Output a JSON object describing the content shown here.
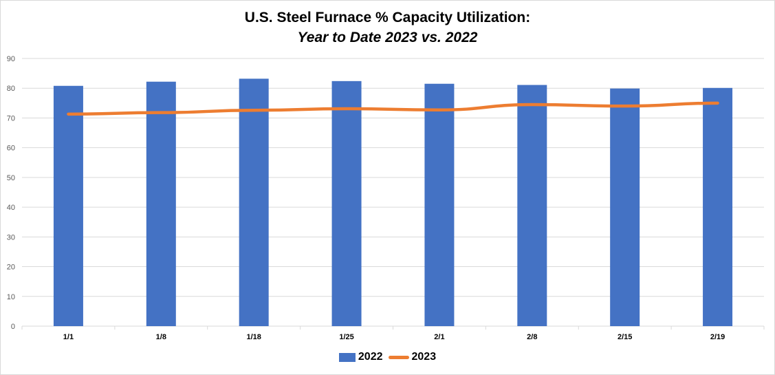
{
  "colors": {
    "bar": "#4472c4",
    "line": "#ed7d31",
    "grid": "#d9d9d9"
  },
  "chart_data": {
    "type": "bar",
    "title": "U.S. Steel Furnace % Capacity Utilization:",
    "subtitle": "Year to Date 2023 vs. 2022",
    "categories": [
      "1/1",
      "1/8",
      "1/18",
      "1/25",
      "2/1",
      "2/8",
      "2/15",
      "2/19"
    ],
    "ylim": [
      0,
      90
    ],
    "yticks": [
      0,
      10,
      20,
      30,
      40,
      50,
      60,
      70,
      80,
      90
    ],
    "grid": true,
    "legend_position": "bottom",
    "series": [
      {
        "name": "2022",
        "type": "bar",
        "values": [
          80.8,
          82.2,
          83.2,
          82.4,
          81.5,
          81.1,
          79.9,
          80.1
        ]
      },
      {
        "name": "2023",
        "type": "line",
        "values": [
          71.3,
          71.8,
          72.6,
          73.1,
          72.7,
          74.5,
          74.0,
          75.0
        ]
      }
    ]
  }
}
